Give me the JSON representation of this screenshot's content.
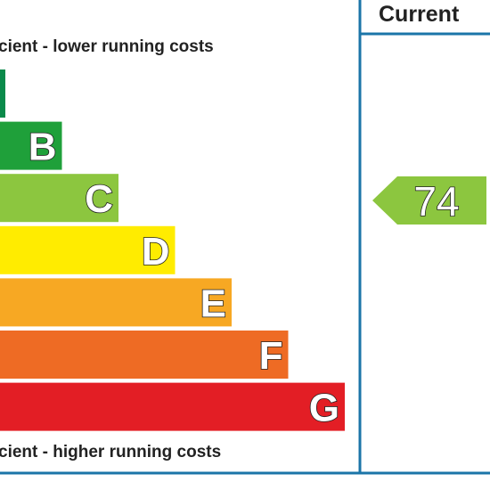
{
  "header": {
    "title": "Current"
  },
  "top_note": "cient - lower running costs",
  "bottom_note": "cient - higher running costs",
  "bands": [
    {
      "label": null,
      "color": "#0a8a4a"
    },
    {
      "label": "B",
      "color": "#1fa03a"
    },
    {
      "label": "C",
      "color": "#8cc63f"
    },
    {
      "label": "D",
      "color": "#ffec00"
    },
    {
      "label": "E",
      "color": "#f7a823"
    },
    {
      "label": "F",
      "color": "#ee6b24"
    },
    {
      "label": "G",
      "color": "#e31e25"
    }
  ],
  "current": {
    "value": 74,
    "color": "#8cc63f"
  }
}
